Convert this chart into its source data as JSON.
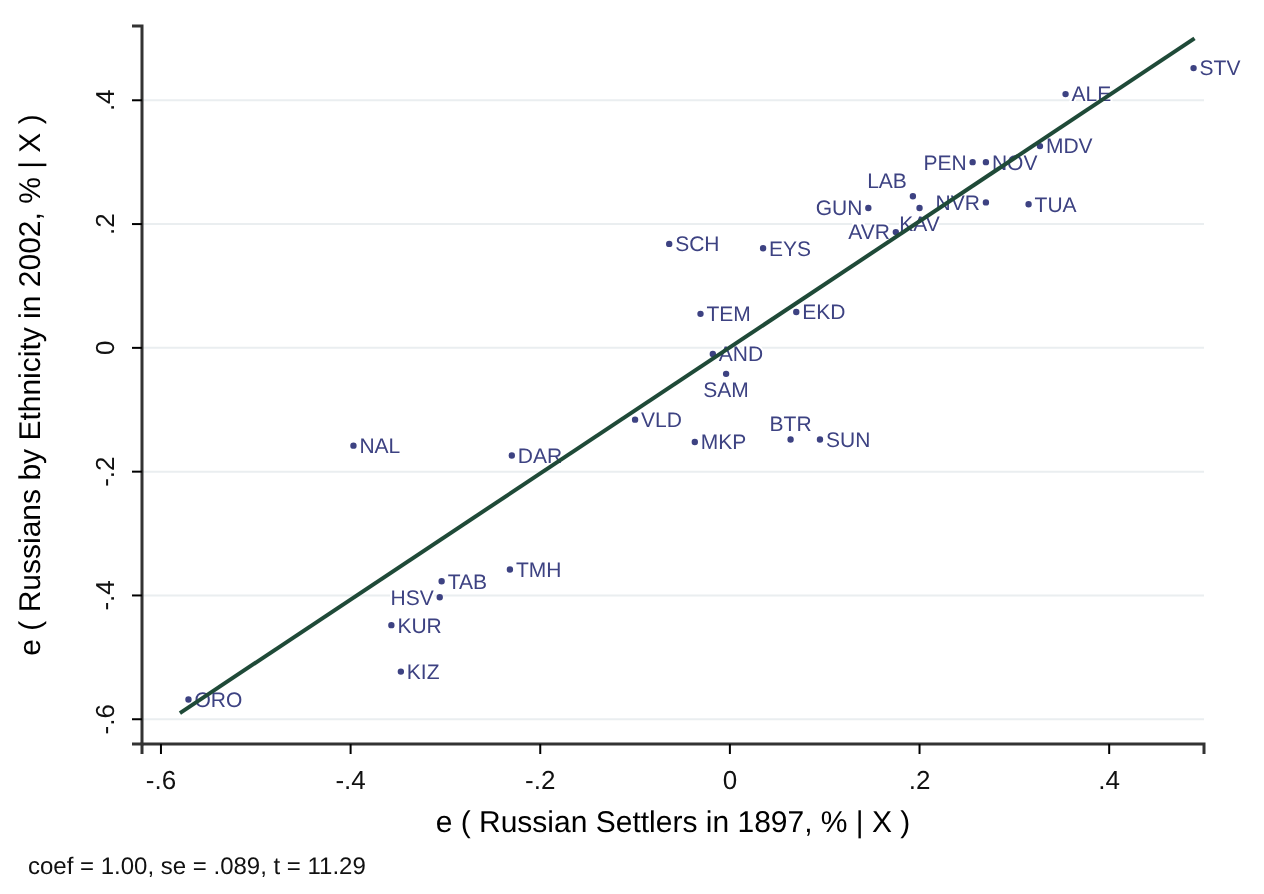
{
  "chart_data": {
    "type": "scatter",
    "xlabel": "e ( Russian Settlers in 1897, % | X )",
    "ylabel": "e ( Russians by Ethnicity in 2002, % | X )",
    "annotations": [
      "coef = 1.00, se = .089, t = 11.29"
    ],
    "xlim": [
      -0.62,
      0.5
    ],
    "ylim": [
      -0.64,
      0.52
    ],
    "xticks": [
      {
        "value": -0.6,
        "label": "-.6"
      },
      {
        "value": -0.4,
        "label": "-.4"
      },
      {
        "value": -0.2,
        "label": "-.2"
      },
      0,
      {
        "value": 0.2,
        "label": ".2"
      },
      {
        "value": 0.4,
        "label": ".4"
      }
    ],
    "yticks": [
      {
        "value": -0.6,
        "label": "-.6"
      },
      {
        "value": -0.4,
        "label": "-.4"
      },
      {
        "value": -0.2,
        "label": "-.2"
      },
      0,
      {
        "value": 0.2,
        "label": ".2"
      },
      {
        "value": 0.4,
        "label": ".4"
      }
    ],
    "grid": "y",
    "series": [
      {
        "color": "#3d4282",
        "marker": "circle",
        "x": [
          0.489,
          0.354,
          0.327,
          0.256,
          0.27,
          0.27,
          0.315,
          0.193,
          0.146,
          0.2,
          0.175,
          -0.064,
          0.035,
          -0.031,
          0.07,
          -0.018,
          -0.004,
          -0.1,
          -0.037,
          0.064,
          0.095,
          -0.397,
          -0.23,
          -0.232,
          -0.304,
          -0.306,
          -0.357,
          -0.347,
          -0.571
        ],
        "values": [
          0.452,
          0.41,
          0.326,
          0.3,
          0.3,
          0.235,
          0.232,
          0.245,
          0.226,
          0.226,
          0.187,
          0.168,
          0.161,
          0.055,
          0.058,
          -0.01,
          -0.042,
          -0.116,
          -0.152,
          -0.148,
          -0.148,
          -0.158,
          -0.174,
          -0.358,
          -0.377,
          -0.403,
          -0.448,
          -0.523,
          -0.568
        ],
        "value_labels": [
          "STV",
          "ALE",
          "MDV",
          "PEN",
          "NOV",
          "NVR",
          "TUA",
          "LAB",
          "GUN",
          "KAV",
          "AVR",
          "SCH",
          "EYS",
          "TEM",
          "EKD",
          "AND",
          "SAM",
          "VLD",
          "MKP",
          "BTR",
          "SUN",
          "NAL",
          "DAR",
          "TMH",
          "TAB",
          "HSV",
          "KUR",
          "KIZ",
          "ORO"
        ]
      },
      {
        "type": "line",
        "color": "#1f4a38",
        "marker": "none",
        "x": [
          -0.58,
          0.49
        ],
        "values": [
          -0.59,
          0.5
        ]
      }
    ]
  }
}
